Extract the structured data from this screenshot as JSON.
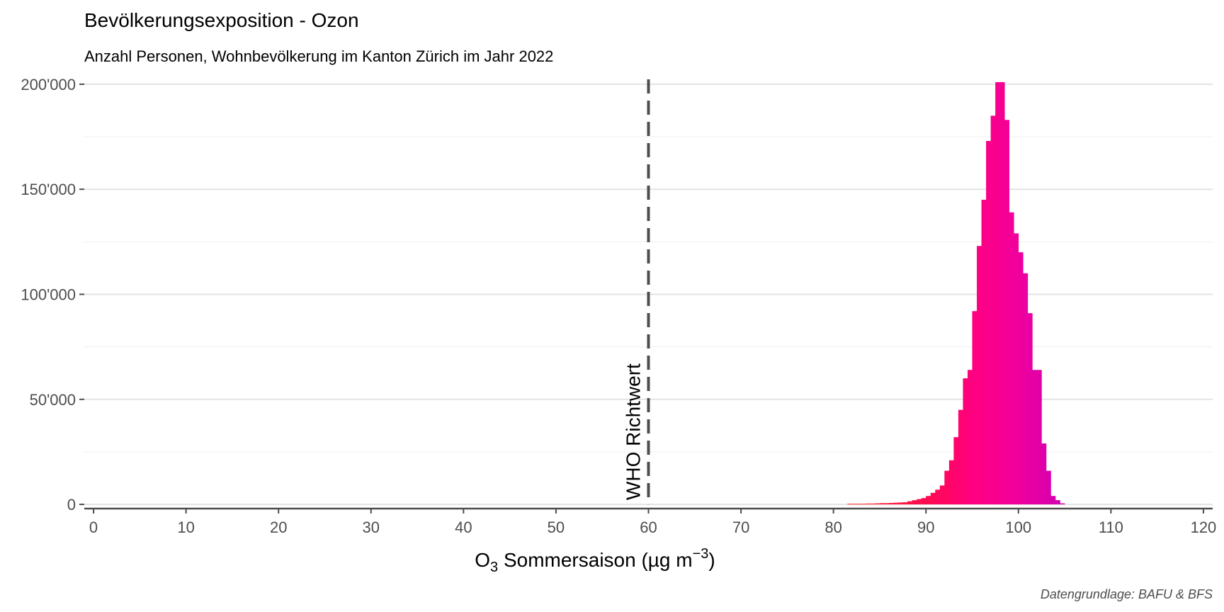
{
  "chart_data": {
    "type": "bar",
    "title": "Bevölkerungsexposition - Ozon",
    "subtitle": "Anzahl Personen, Wohnbevölkerung im Kanton Zürich im Jahr 2022",
    "xlabel_main": "O",
    "xlabel_sub": "3",
    "xlabel_rest": " Sommersaison (µg m",
    "xlabel_sup": "−3",
    "xlabel_end": ")",
    "caption": "Datengrundlage: BAFU & BFS",
    "xlim": [
      -1,
      121
    ],
    "ylim": [
      -2000,
      203000
    ],
    "x_ticks": [
      {
        "value": 0,
        "label": "0"
      },
      {
        "value": 10,
        "label": "10"
      },
      {
        "value": 20,
        "label": "20"
      },
      {
        "value": 30,
        "label": "30"
      },
      {
        "value": 40,
        "label": "40"
      },
      {
        "value": 50,
        "label": "50"
      },
      {
        "value": 60,
        "label": "60"
      },
      {
        "value": 70,
        "label": "70"
      },
      {
        "value": 80,
        "label": "80"
      },
      {
        "value": 90,
        "label": "90"
      },
      {
        "value": 100,
        "label": "100"
      },
      {
        "value": 110,
        "label": "110"
      },
      {
        "value": 120,
        "label": "120"
      }
    ],
    "y_ticks": [
      {
        "value": 0,
        "label": "0"
      },
      {
        "value": 50000,
        "label": "50'000"
      },
      {
        "value": 100000,
        "label": "100'000"
      },
      {
        "value": 150000,
        "label": "150'000"
      },
      {
        "value": 200000,
        "label": "200'000"
      }
    ],
    "y_minor": [
      25000,
      75000,
      125000,
      175000
    ],
    "reference_line": {
      "value": 60,
      "label": "WHO Richtwert",
      "style": "dashed",
      "color": "#4d4d4d"
    },
    "bin_width": 0.5,
    "bins": [
      {
        "x": 81.5,
        "y": 300
      },
      {
        "x": 82,
        "y": 300
      },
      {
        "x": 82.5,
        "y": 300
      },
      {
        "x": 83,
        "y": 300
      },
      {
        "x": 83.5,
        "y": 400
      },
      {
        "x": 84,
        "y": 400
      },
      {
        "x": 84.5,
        "y": 500
      },
      {
        "x": 85,
        "y": 600
      },
      {
        "x": 85.5,
        "y": 600
      },
      {
        "x": 86,
        "y": 700
      },
      {
        "x": 86.5,
        "y": 800
      },
      {
        "x": 87,
        "y": 900
      },
      {
        "x": 87.5,
        "y": 1000
      },
      {
        "x": 88,
        "y": 1500
      },
      {
        "x": 88.5,
        "y": 2000
      },
      {
        "x": 89,
        "y": 2500
      },
      {
        "x": 89.5,
        "y": 3000
      },
      {
        "x": 90,
        "y": 4000
      },
      {
        "x": 90.5,
        "y": 5500
      },
      {
        "x": 91,
        "y": 7000
      },
      {
        "x": 91.5,
        "y": 9000
      },
      {
        "x": 92,
        "y": 16000
      },
      {
        "x": 92.5,
        "y": 21000
      },
      {
        "x": 93,
        "y": 32000
      },
      {
        "x": 93.5,
        "y": 45000
      },
      {
        "x": 94,
        "y": 60000
      },
      {
        "x": 94.5,
        "y": 64000
      },
      {
        "x": 95,
        "y": 92000
      },
      {
        "x": 95.5,
        "y": 123000
      },
      {
        "x": 96,
        "y": 145000
      },
      {
        "x": 96.5,
        "y": 173000
      },
      {
        "x": 97,
        "y": 185000
      },
      {
        "x": 97.5,
        "y": 201000
      },
      {
        "x": 98,
        "y": 201000
      },
      {
        "x": 98.5,
        "y": 183000
      },
      {
        "x": 99,
        "y": 139000
      },
      {
        "x": 99.5,
        "y": 129000
      },
      {
        "x": 100,
        "y": 120000
      },
      {
        "x": 100.5,
        "y": 110000
      },
      {
        "x": 101,
        "y": 91000
      },
      {
        "x": 101.5,
        "y": 64000
      },
      {
        "x": 102,
        "y": 64000
      },
      {
        "x": 102.5,
        "y": 29000
      },
      {
        "x": 103,
        "y": 16000
      },
      {
        "x": 103.5,
        "y": 4000
      },
      {
        "x": 104,
        "y": 2000
      },
      {
        "x": 104.5,
        "y": 500
      }
    ],
    "color_scale": [
      {
        "x": 80,
        "color": "#ff3b1f"
      },
      {
        "x": 90,
        "color": "#ff0a50"
      },
      {
        "x": 95,
        "color": "#ff007f"
      },
      {
        "x": 100,
        "color": "#f0009e"
      },
      {
        "x": 105,
        "color": "#d000b0"
      }
    ],
    "grid": true,
    "colors": {
      "grid_major": "#e3e3e3",
      "grid_minor": "#efefef",
      "axis": "#4d4d4d"
    }
  }
}
